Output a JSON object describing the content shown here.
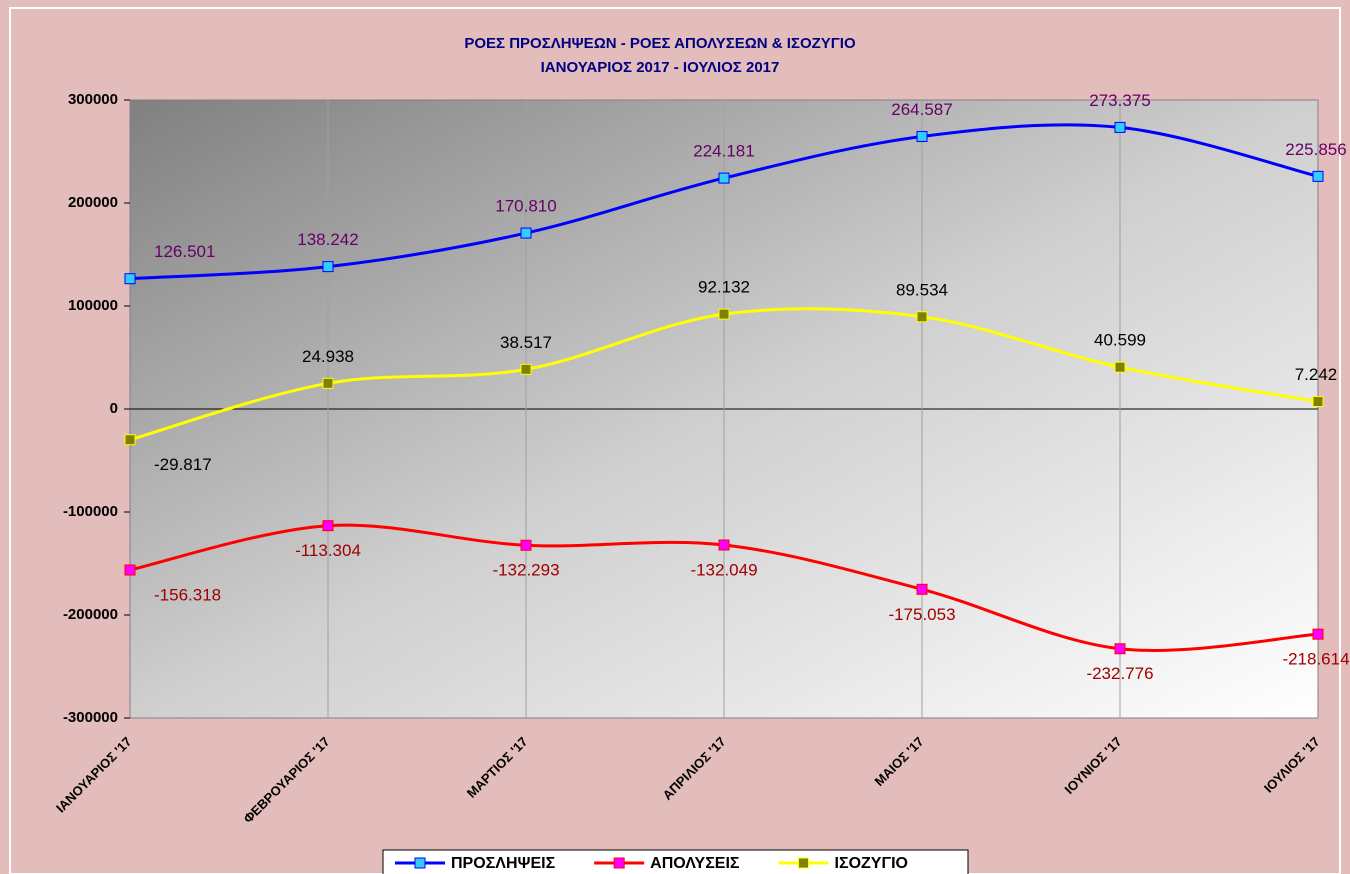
{
  "chart_data": {
    "type": "line",
    "title": "ΡΟΕΣ ΠΡΟΣΛΗΨΕΩΝ - ΡΟΕΣ ΑΠΟΛΥΣΕΩΝ & ΙΣΟΖΥΓΙΟ",
    "subtitle": "ΙΑΝΟΥΑΡΙΟΣ 2017 - ΙΟΥΛΙΟΣ 2017",
    "categories": [
      "ΙΑΝΟΥΑΡΙΟΣ '17",
      "ΦΕΒΡΟΥΑΡΙΟΣ '17",
      "ΜΑΡΤΙΟΣ '17",
      "ΑΠΡΙΛΙΟΣ '17",
      "ΜΑΙΟΣ '17",
      "ΙΟΥΝΙΟΣ '17",
      "ΙΟΥΛΙΟΣ '17"
    ],
    "series": [
      {
        "name": "ΠΡΟΣΛΗΨΕΙΣ",
        "color": "#0000ff",
        "marker_color": "#33ccff",
        "label_color": "#660066",
        "values": [
          126501,
          138242,
          170810,
          224181,
          264587,
          273375,
          225856
        ],
        "value_labels": [
          "126.501",
          "138.242",
          "170.810",
          "224.181",
          "264.587",
          "273.375",
          "225.856"
        ]
      },
      {
        "name": "ΑΠΟΛΥΣΕΙΣ",
        "color": "#ff0000",
        "marker_color": "#ff00ff",
        "label_color": "#a00000",
        "values": [
          -156318,
          -113304,
          -132293,
          -132049,
          -175053,
          -232776,
          -218614
        ],
        "value_labels": [
          "-156.318",
          "-113.304",
          "-132.293",
          "-132.049",
          "-175.053",
          "-232.776",
          "-218.614"
        ]
      },
      {
        "name": "ΙΣΟΖΥΓΙΟ",
        "color": "#ffff00",
        "marker_color": "#808000",
        "label_color": "#000000",
        "values": [
          -29817,
          24938,
          38517,
          92132,
          89534,
          40599,
          7242
        ],
        "value_labels": [
          "-29.817",
          "24.938",
          "38.517",
          "92.132",
          "89.534",
          "40.599",
          "7.242"
        ]
      }
    ],
    "ylim": [
      -300000,
      300000
    ],
    "yticks": [
      -300000,
      -200000,
      -100000,
      0,
      100000,
      200000,
      300000
    ],
    "grid": true,
    "smooth": true,
    "legend": "bottom"
  }
}
